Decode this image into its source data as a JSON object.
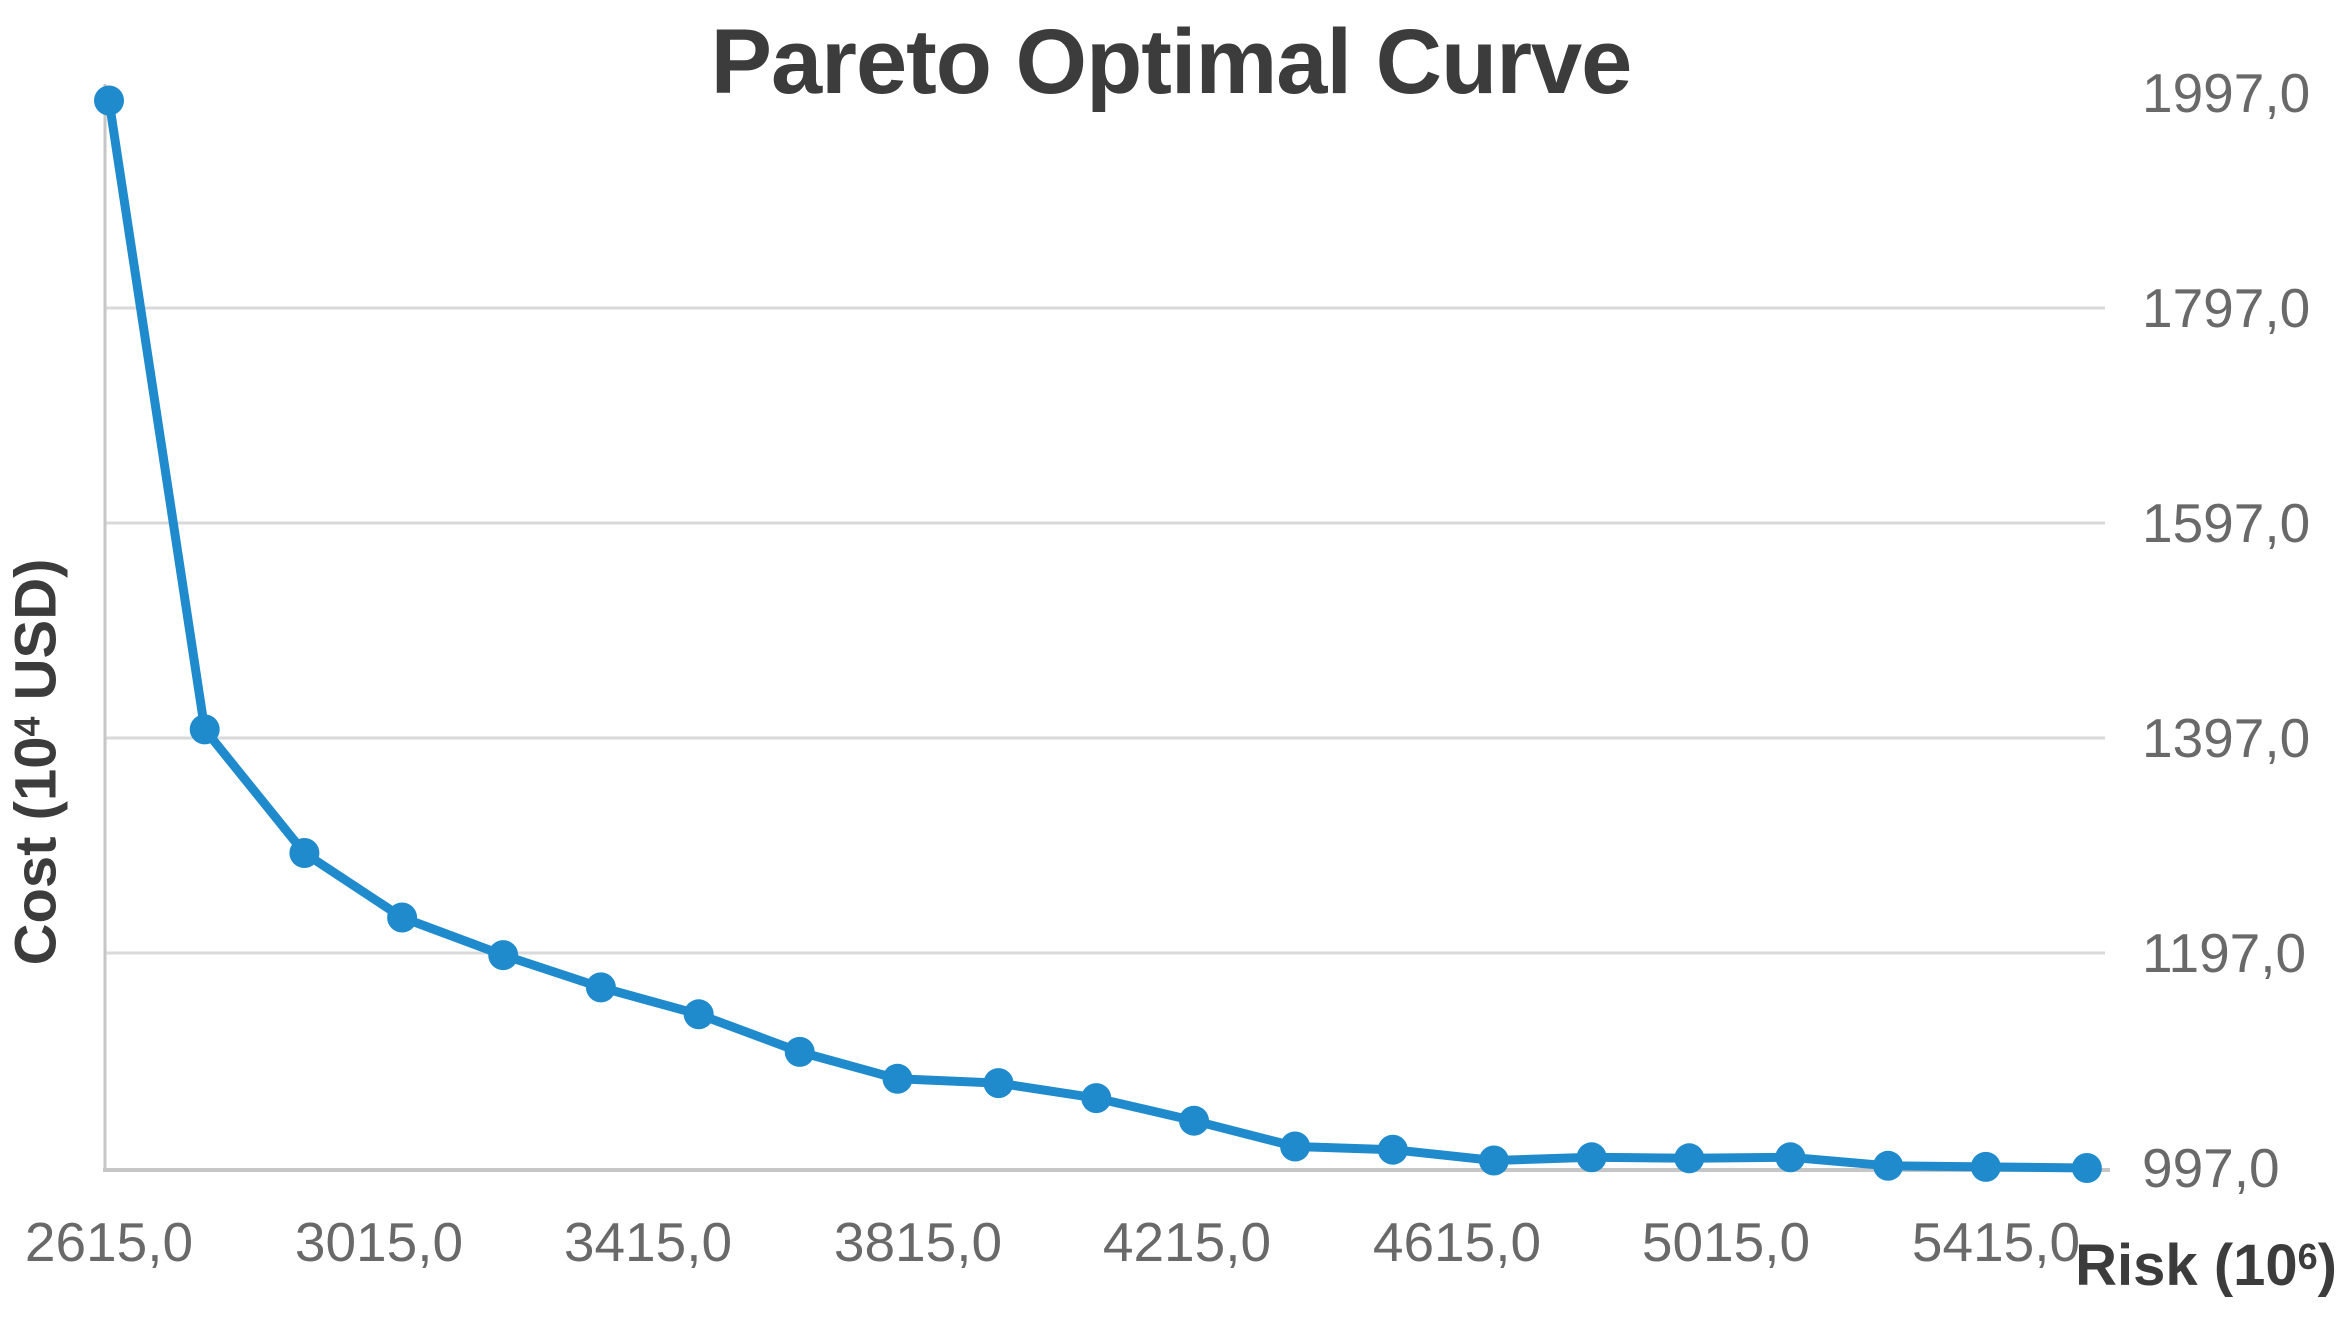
{
  "chart_data": {
    "type": "line",
    "title": "Pareto Optimal Curve",
    "xlabel": "Risk (10⁶)",
    "ylabel": "Cost (10⁴ USD)",
    "series": [
      {
        "x": [
          2615,
          2757,
          2905,
          3050,
          3200,
          3345,
          3490,
          3640,
          3785,
          3935,
          4080,
          4225,
          4375,
          4520,
          4670,
          4815,
          4960,
          5110,
          5255,
          5400,
          5550
        ],
        "y": [
          1990,
          1405,
          1290,
          1230,
          1195,
          1165,
          1140,
          1105,
          1080,
          1076,
          1062,
          1041,
          1017,
          1014,
          1004,
          1007,
          1006,
          1007,
          999,
          998,
          997
        ]
      }
    ],
    "x_ticks": [
      {
        "value": 2615,
        "label": "2615,0"
      },
      {
        "value": 3015,
        "label": "3015,0"
      },
      {
        "value": 3415,
        "label": "3415,0"
      },
      {
        "value": 3815,
        "label": "3815,0"
      },
      {
        "value": 4215,
        "label": "4215,0"
      },
      {
        "value": 4615,
        "label": "4615,0"
      },
      {
        "value": 5015,
        "label": "5015,0"
      },
      {
        "value": 5415,
        "label": "5415,0"
      }
    ],
    "y_ticks": [
      {
        "value": 1997,
        "label": "1997,0"
      },
      {
        "value": 1797,
        "label": "1797,0"
      },
      {
        "value": 1597,
        "label": "1597,0"
      },
      {
        "value": 1397,
        "label": "1397,0"
      },
      {
        "value": 1197,
        "label": "1197,0"
      },
      {
        "value": 997,
        "label": "997,0"
      }
    ],
    "xlim": [
      2615,
      5575
    ],
    "ylim": [
      997,
      1997
    ],
    "grid": "horizontal",
    "legend": "none",
    "marker": "circle",
    "decimal_separator": ","
  },
  "colors": {
    "line": "#1F8BCD",
    "marker": "#1F8BCD",
    "title_text": "#3C3C3C",
    "axis_title_text": "#3C3C3C",
    "tick_text": "#696969",
    "gridline": "#D9D9D9",
    "axis_line": "#C6C6C6",
    "background": "#FFFFFF"
  }
}
